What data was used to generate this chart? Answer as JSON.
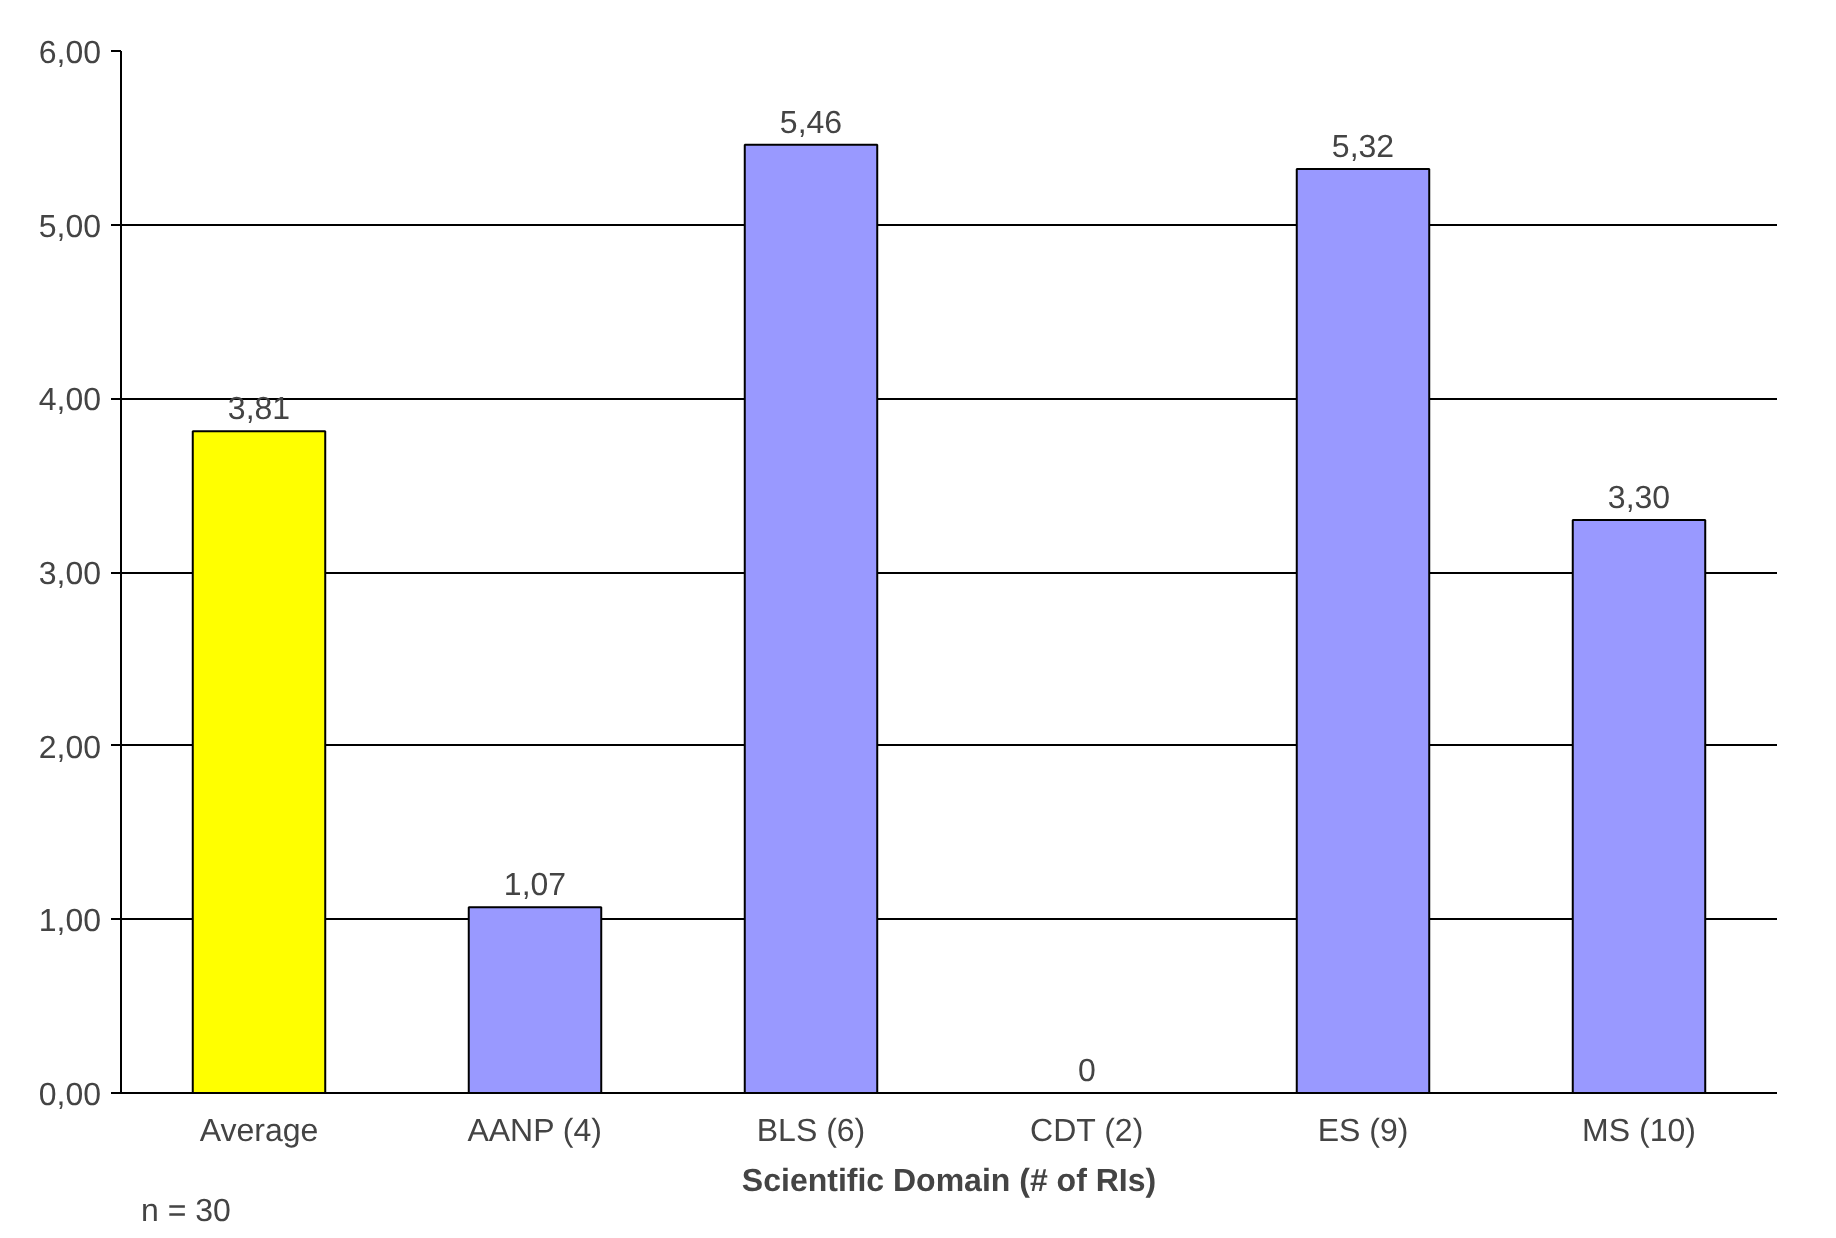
{
  "chart_data": {
    "type": "bar",
    "xlabel": "Scientific Domain (# of RIs)",
    "categories": [
      "Average",
      "AANP (4)",
      "BLS (6)",
      "CDT (2)",
      "ES (9)",
      "MS (10)"
    ],
    "values": [
      3.81,
      1.07,
      5.46,
      0,
      5.32,
      3.3
    ],
    "colors": [
      "#ffff00",
      "#9999ff",
      "#9999ff",
      "#9999ff",
      "#9999ff",
      "#9999ff"
    ],
    "value_labels": [
      "3,81",
      "1,07",
      "5,46",
      "0",
      "5,32",
      "3,30"
    ],
    "ylim": [
      0,
      6
    ],
    "yticks": [
      {
        "value": 0,
        "label": "0,00"
      },
      {
        "value": 1,
        "label": "1,00"
      },
      {
        "value": 2,
        "label": "2,00"
      },
      {
        "value": 3,
        "label": "3,00"
      },
      {
        "value": 4,
        "label": "4,00"
      },
      {
        "value": 5,
        "label": "5,00"
      },
      {
        "value": 6,
        "label": "6,00"
      }
    ],
    "grid": "y",
    "annotations": [
      "n = 30"
    ]
  }
}
